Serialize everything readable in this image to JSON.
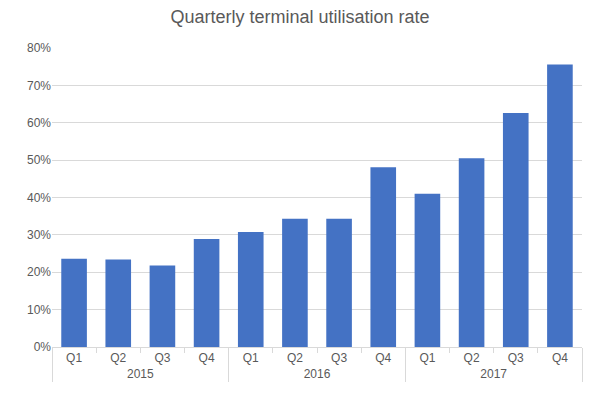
{
  "chart_data": {
    "type": "bar",
    "title": "Quarterly terminal utilisation rate",
    "categories": [
      [
        "2015",
        "Q1"
      ],
      [
        "2015",
        "Q2"
      ],
      [
        "2015",
        "Q3"
      ],
      [
        "2015",
        "Q4"
      ],
      [
        "2016",
        "Q1"
      ],
      [
        "2016",
        "Q2"
      ],
      [
        "2016",
        "Q3"
      ],
      [
        "2016",
        "Q4"
      ],
      [
        "2017",
        "Q1"
      ],
      [
        "2017",
        "Q2"
      ],
      [
        "2017",
        "Q3"
      ],
      [
        "2017",
        "Q4"
      ]
    ],
    "values": [
      23.6,
      23.4,
      21.8,
      28.9,
      30.8,
      34.3,
      34.3,
      48.1,
      41.0,
      50.5,
      62.6,
      75.6
    ],
    "color": "#4472c4",
    "ylim": [
      0,
      80
    ],
    "yticks": [
      {
        "value": 0,
        "label": "0%"
      },
      {
        "value": 10,
        "label": "10%"
      },
      {
        "value": 20,
        "label": "20%"
      },
      {
        "value": 30,
        "label": "30%"
      },
      {
        "value": 40,
        "label": "40%"
      },
      {
        "value": 50,
        "label": "50%"
      },
      {
        "value": 60,
        "label": "60%"
      },
      {
        "value": 70,
        "label": "70%"
      },
      {
        "value": 80,
        "label": "80%"
      }
    ],
    "grid": true
  }
}
